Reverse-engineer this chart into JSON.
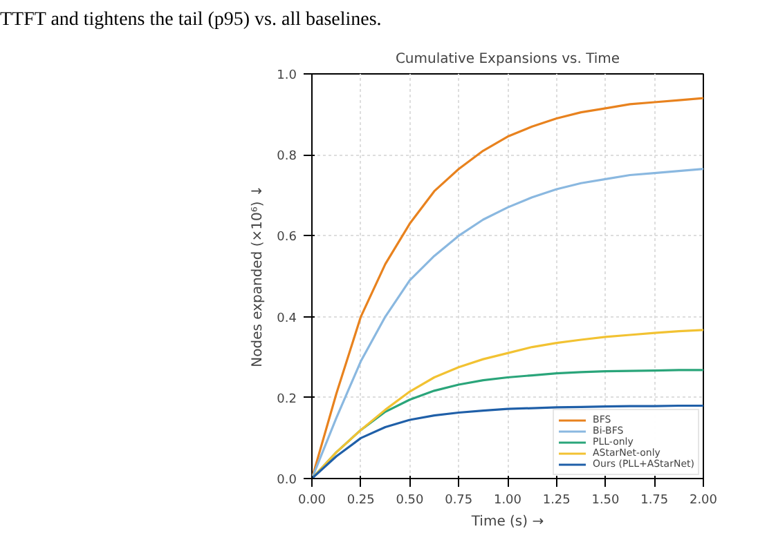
{
  "chart_data": {
    "type": "line",
    "title": "Cumulative Expansions vs. Time",
    "xlabel": "Time (s) →",
    "ylabel": "Nodes expanded (×10⁶) ↓",
    "annotations": [
      "TTFT and tightens the tail (p95) vs. all baselines."
    ],
    "x": [
      0,
      0.125,
      0.25,
      0.375,
      0.5,
      0.625,
      0.75,
      0.875,
      1.0,
      1.125,
      1.25,
      1.375,
      1.5,
      1.625,
      1.75,
      1.875,
      2.0
    ],
    "series": [
      {
        "name": "BFS",
        "color": "#e8821e",
        "values": [
          0,
          0.21,
          0.4,
          0.53,
          0.63,
          0.71,
          0.765,
          0.81,
          0.845,
          0.87,
          0.89,
          0.905,
          0.915,
          0.925,
          0.93,
          0.935,
          0.94
        ]
      },
      {
        "name": "Bi-BFS",
        "color": "#8ab8e0",
        "values": [
          0,
          0.15,
          0.29,
          0.4,
          0.49,
          0.55,
          0.6,
          0.64,
          0.67,
          0.695,
          0.715,
          0.73,
          0.74,
          0.75,
          0.755,
          0.76,
          0.765
        ]
      },
      {
        "name": "PLL-only",
        "color": "#2aa57a",
        "values": [
          0,
          0.065,
          0.12,
          0.165,
          0.195,
          0.217,
          0.232,
          0.243,
          0.25,
          0.255,
          0.26,
          0.263,
          0.265,
          0.266,
          0.267,
          0.268,
          0.268
        ]
      },
      {
        "name": "AStarNet-only",
        "color": "#f2c232",
        "values": [
          0,
          0.065,
          0.12,
          0.17,
          0.215,
          0.25,
          0.275,
          0.295,
          0.31,
          0.325,
          0.335,
          0.343,
          0.35,
          0.355,
          0.36,
          0.364,
          0.367
        ]
      },
      {
        "name": "Ours (PLL+AStarNet)",
        "color": "#1f5fa8",
        "values": [
          0,
          0.055,
          0.1,
          0.127,
          0.145,
          0.156,
          0.163,
          0.168,
          0.172,
          0.174,
          0.176,
          0.177,
          0.178,
          0.179,
          0.179,
          0.18,
          0.18
        ]
      }
    ],
    "xlim": [
      0,
      2.0
    ],
    "ylim": [
      0,
      1.0
    ],
    "xticks": [
      {
        "value": 0,
        "label": "0.00"
      },
      {
        "value": 0.25,
        "label": "0.25"
      },
      {
        "value": 0.5,
        "label": "0.50"
      },
      {
        "value": 0.75,
        "label": "0.75"
      },
      {
        "value": 1.0,
        "label": "1.00"
      },
      {
        "value": 1.25,
        "label": "1.25"
      },
      {
        "value": 1.5,
        "label": "1.50"
      },
      {
        "value": 1.75,
        "label": "1.75"
      },
      {
        "value": 2.0,
        "label": "2.00"
      }
    ],
    "yticks": [
      {
        "value": 0,
        "label": "0.0"
      },
      {
        "value": 0.2,
        "label": "0.2"
      },
      {
        "value": 0.4,
        "label": "0.4"
      },
      {
        "value": 0.6,
        "label": "0.6"
      },
      {
        "value": 0.8,
        "label": "0.8"
      },
      {
        "value": 1.0,
        "label": "1.0"
      }
    ],
    "grid": true,
    "legend": "bottom right",
    "marker": "none",
    "line_style": "solid"
  }
}
